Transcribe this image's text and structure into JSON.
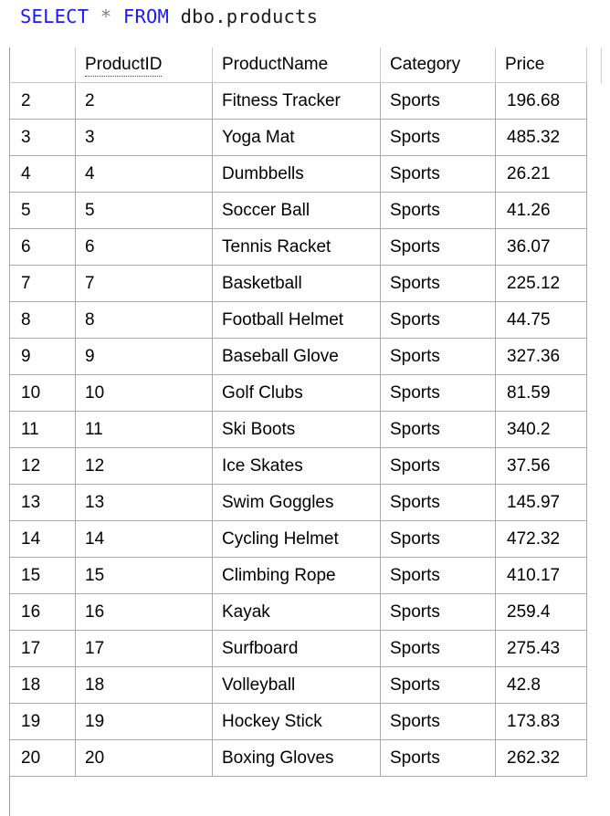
{
  "query": {
    "keyword_select": "SELECT",
    "operator_star": "*",
    "keyword_from": "FROM",
    "object_name": "dbo.products"
  },
  "grid": {
    "columns": [
      "ProductID",
      "ProductName",
      "Category",
      "Price"
    ],
    "rows": [
      {
        "rownum": "2",
        "ProductID": "2",
        "ProductName": "Fitness Tracker",
        "Category": "Sports",
        "Price": "196.68"
      },
      {
        "rownum": "3",
        "ProductID": "3",
        "ProductName": "Yoga Mat",
        "Category": "Sports",
        "Price": "485.32"
      },
      {
        "rownum": "4",
        "ProductID": "4",
        "ProductName": "Dumbbells",
        "Category": "Sports",
        "Price": "26.21"
      },
      {
        "rownum": "5",
        "ProductID": "5",
        "ProductName": "Soccer Ball",
        "Category": "Sports",
        "Price": "41.26"
      },
      {
        "rownum": "6",
        "ProductID": "6",
        "ProductName": "Tennis Racket",
        "Category": "Sports",
        "Price": "36.07"
      },
      {
        "rownum": "7",
        "ProductID": "7",
        "ProductName": "Basketball",
        "Category": "Sports",
        "Price": "225.12"
      },
      {
        "rownum": "8",
        "ProductID": "8",
        "ProductName": "Football Helmet",
        "Category": "Sports",
        "Price": "44.75"
      },
      {
        "rownum": "9",
        "ProductID": "9",
        "ProductName": "Baseball Glove",
        "Category": "Sports",
        "Price": "327.36"
      },
      {
        "rownum": "10",
        "ProductID": "10",
        "ProductName": "Golf Clubs",
        "Category": "Sports",
        "Price": "81.59"
      },
      {
        "rownum": "11",
        "ProductID": "11",
        "ProductName": "Ski Boots",
        "Category": "Sports",
        "Price": "340.2"
      },
      {
        "rownum": "12",
        "ProductID": "12",
        "ProductName": "Ice Skates",
        "Category": "Sports",
        "Price": "37.56"
      },
      {
        "rownum": "13",
        "ProductID": "13",
        "ProductName": "Swim Goggles",
        "Category": "Sports",
        "Price": "145.97"
      },
      {
        "rownum": "14",
        "ProductID": "14",
        "ProductName": "Cycling Helmet",
        "Category": "Sports",
        "Price": "472.32"
      },
      {
        "rownum": "15",
        "ProductID": "15",
        "ProductName": "Climbing Rope",
        "Category": "Sports",
        "Price": "410.17"
      },
      {
        "rownum": "16",
        "ProductID": "16",
        "ProductName": "Kayak",
        "Category": "Sports",
        "Price": "259.4"
      },
      {
        "rownum": "17",
        "ProductID": "17",
        "ProductName": "Surfboard",
        "Category": "Sports",
        "Price": "275.43"
      },
      {
        "rownum": "18",
        "ProductID": "18",
        "ProductName": "Volleyball",
        "Category": "Sports",
        "Price": "42.8"
      },
      {
        "rownum": "19",
        "ProductID": "19",
        "ProductName": "Hockey Stick",
        "Category": "Sports",
        "Price": "173.83"
      },
      {
        "rownum": "20",
        "ProductID": "20",
        "ProductName": "Boxing Gloves",
        "Category": "Sports",
        "Price": "262.32"
      }
    ]
  },
  "colors": {
    "keyword": "#1a1aff",
    "operator": "#808080",
    "object": "#1a1a1a",
    "grid_line": "#aaaaaa"
  }
}
